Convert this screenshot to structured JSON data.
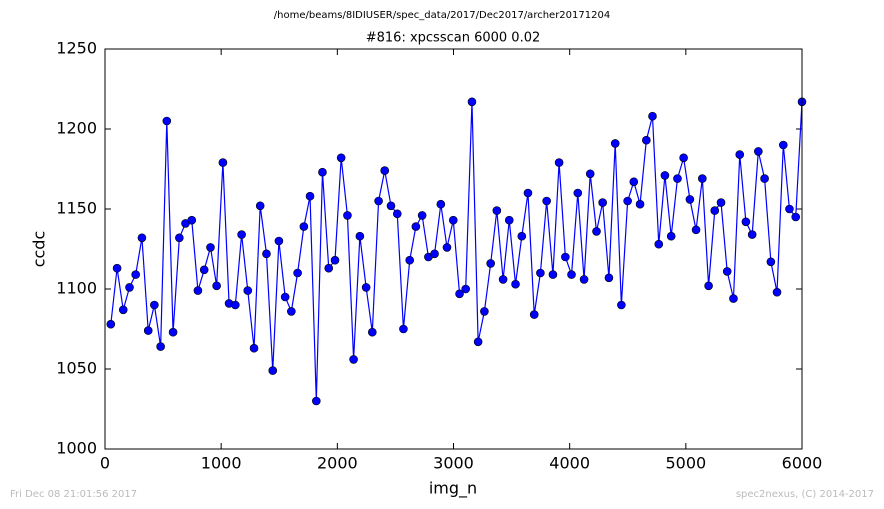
{
  "chart_data": {
    "type": "line",
    "suptitle": "/home/beams/8IDIUSER/spec_data/2017/Dec2017/archer20171204",
    "title": "#816: xpcsscan 6000 0.02",
    "xlabel": "img_n",
    "ylabel": "ccdc",
    "footer_left": "Fri Dec 08 21:01:56 2017",
    "footer_right": "spec2nexus, (C) 2014-2017",
    "color": "#0000ff",
    "marker": true,
    "x": [
      50,
      104,
      157,
      211,
      264,
      318,
      372,
      425,
      479,
      532,
      586,
      640,
      693,
      747,
      800,
      854,
      908,
      961,
      1015,
      1068,
      1122,
      1176,
      1229,
      1283,
      1336,
      1390,
      1444,
      1497,
      1551,
      1604,
      1658,
      1712,
      1765,
      1819,
      1872,
      1926,
      1980,
      2033,
      2087,
      2140,
      2194,
      2248,
      2301,
      2355,
      2408,
      2462,
      2516,
      2569,
      2623,
      2676,
      2730,
      2784,
      2837,
      2891,
      2944,
      2998,
      3052,
      3105,
      3159,
      3212,
      3266,
      3320,
      3373,
      3427,
      3480,
      3534,
      3588,
      3641,
      3695,
      3748,
      3802,
      3856,
      3909,
      3963,
      4016,
      4070,
      4124,
      4177,
      4231,
      4284,
      4338,
      4392,
      4445,
      4499,
      4552,
      4606,
      4660,
      4713,
      4767,
      4820,
      4874,
      4928,
      4981,
      5035,
      5088,
      5142,
      5196,
      5249,
      5303,
      5356,
      5410,
      5464,
      5517,
      5571,
      5624,
      5678,
      5732,
      5785,
      5839,
      5892,
      5946,
      6000
    ],
    "values": [
      1078,
      1113,
      1087,
      1101,
      1109,
      1132,
      1074,
      1090,
      1064,
      1205,
      1073,
      1132,
      1141,
      1143,
      1099,
      1112,
      1126,
      1102,
      1179,
      1091,
      1090,
      1134,
      1099,
      1063,
      1152,
      1122,
      1049,
      1130,
      1095,
      1086,
      1110,
      1139,
      1158,
      1030,
      1173,
      1113,
      1118,
      1182,
      1146,
      1056,
      1133,
      1101,
      1073,
      1155,
      1174,
      1152,
      1147,
      1075,
      1118,
      1139,
      1146,
      1120,
      1122,
      1153,
      1126,
      1143,
      1097,
      1100,
      1217,
      1067,
      1086,
      1116,
      1149,
      1106,
      1143,
      1103,
      1133,
      1160,
      1084,
      1110,
      1155,
      1109,
      1179,
      1120,
      1109,
      1160,
      1106,
      1172,
      1136,
      1154,
      1107,
      1191,
      1090,
      1155,
      1167,
      1153,
      1193,
      1208,
      1128,
      1171,
      1133,
      1169,
      1182,
      1156,
      1137,
      1169,
      1102,
      1149,
      1154,
      1111,
      1094,
      1184,
      1142,
      1134,
      1186,
      1169,
      1117,
      1098,
      1190,
      1150,
      1145,
      1217
    ],
    "xlim": [
      0,
      6000
    ],
    "xticks": [
      0,
      1000,
      2000,
      3000,
      4000,
      5000,
      6000
    ],
    "ylim": [
      1000,
      1250
    ],
    "yticks": [
      1000,
      1050,
      1100,
      1150,
      1200,
      1250
    ]
  }
}
